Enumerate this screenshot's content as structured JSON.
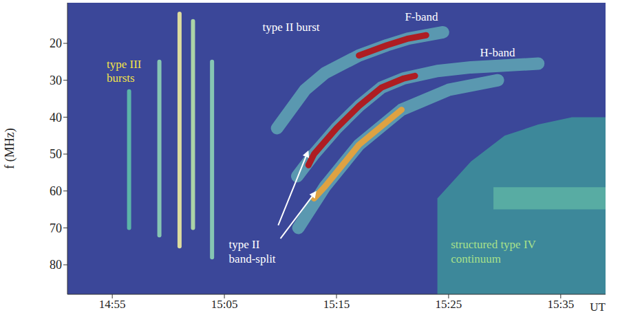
{
  "chart_data": {
    "type": "spectrogram",
    "y_label": "f (MHz)",
    "x_label": "UT",
    "xlim": [
      891,
      939
    ],
    "xticks": [
      {
        "value": 895,
        "label": "14:55"
      },
      {
        "value": 905,
        "label": "15:05"
      },
      {
        "value": 915,
        "label": "15:15"
      },
      {
        "value": 925,
        "label": "15:25"
      },
      {
        "value": 935,
        "label": "15:35"
      }
    ],
    "ylim": [
      88,
      9
    ],
    "yticks": [
      20,
      30,
      40,
      50,
      60,
      70,
      80
    ],
    "grid": false,
    "series": [
      {
        "type": "line",
        "x": [
          896.5,
          896.5
        ],
        "values": [
          33,
          70
        ],
        "color": "#5fc0aa",
        "line_style": "thin"
      },
      {
        "type": "line",
        "x": [
          899.2,
          899.2
        ],
        "values": [
          25,
          72
        ],
        "color": "#8fd3b6",
        "line_style": "thin"
      },
      {
        "type": "line",
        "x": [
          901,
          901
        ],
        "values": [
          12,
          75
        ],
        "color": "#f0eca0",
        "line_style": "thin"
      },
      {
        "type": "line",
        "x": [
          902.2,
          902.2
        ],
        "values": [
          14,
          70
        ],
        "color": "#b8e2a8",
        "line_style": "thin"
      },
      {
        "type": "line",
        "x": [
          903.9,
          903.9
        ],
        "values": [
          25,
          78
        ],
        "color": "#8fd3b6",
        "line_style": "thin"
      },
      {
        "type": "area",
        "x": [
          924,
          927,
          930,
          933,
          936,
          939
        ],
        "values": [
          [
            62,
            88
          ],
          [
            52,
            88
          ],
          [
            45,
            88
          ],
          [
            42,
            88
          ],
          [
            40,
            88
          ],
          [
            40,
            88
          ]
        ],
        "color": "#3f9d9b"
      },
      {
        "type": "area",
        "x": [
          929,
          939
        ],
        "values": [
          [
            59,
            65
          ],
          [
            59,
            65
          ]
        ],
        "color": "#62b8a6"
      },
      {
        "type": "line",
        "x": [
          909.7,
          912.2,
          914,
          917,
          919.5,
          921.4,
          924.5
        ],
        "values": [
          43,
          32.6,
          28,
          23.3,
          20.5,
          18.7,
          17
        ],
        "color": "#6fcfbf",
        "line_style": "wide"
      },
      {
        "type": "line",
        "x": [
          911.5,
          913,
          915,
          917,
          919,
          921,
          924,
          927,
          930,
          933
        ],
        "values": [
          56,
          50,
          43,
          37,
          32,
          29.5,
          27.5,
          26.5,
          26,
          25.5
        ],
        "color": "#6fcfbf",
        "line_style": "wide"
      },
      {
        "type": "line",
        "x": [
          911.6,
          914,
          917,
          920.8,
          925,
          929.4
        ],
        "values": [
          70,
          58.7,
          47.5,
          38,
          32.6,
          30
        ],
        "color": "#6fcfbf",
        "line_style": "wide"
      },
      {
        "type": "line",
        "x": [
          913,
          914,
          917,
          920.8
        ],
        "values": [
          62,
          58.7,
          47.5,
          38
        ],
        "color": "#e6a23c",
        "line_style": "narrow"
      },
      {
        "type": "line",
        "x": [
          912.5,
          913,
          915,
          917,
          919,
          921,
          922
        ],
        "values": [
          53,
          50,
          43,
          37,
          32,
          29.5,
          28.8
        ],
        "color": "#b3161a",
        "line_style": "narrow"
      },
      {
        "type": "line",
        "x": [
          917,
          919.5,
          921.4,
          923
        ],
        "values": [
          23.3,
          20.5,
          18.7,
          17.8
        ],
        "color": "#b3161a",
        "line_style": "narrow"
      }
    ],
    "annotations": [
      {
        "text": "type II burst",
        "x": 908.4,
        "y": 16.7,
        "color": "#ffffff"
      },
      {
        "text": "F-band",
        "x": 921.1,
        "y": 13.9,
        "color": "#ffffff"
      },
      {
        "text": "H-band",
        "x": 927.8,
        "y": 23.6,
        "color": "#ffffff"
      },
      {
        "text": "type III\nbursts",
        "x": 894.5,
        "y": 26.7,
        "color": "#f2e24a"
      },
      {
        "text": "type II\nband-split",
        "x": 905.4,
        "y": 75.6,
        "color": "#ffffff",
        "arrows": [
          {
            "from": [
              909.8,
              69.3
            ],
            "to": [
              912.5,
              49
            ]
          },
          {
            "from": [
              910,
              72.9
            ],
            "to": [
              913.2,
              60
            ]
          }
        ]
      },
      {
        "text": "structured type IV\ncontinuum",
        "x": 925.2,
        "y": 75.6,
        "color": "#a8e08a"
      }
    ]
  }
}
